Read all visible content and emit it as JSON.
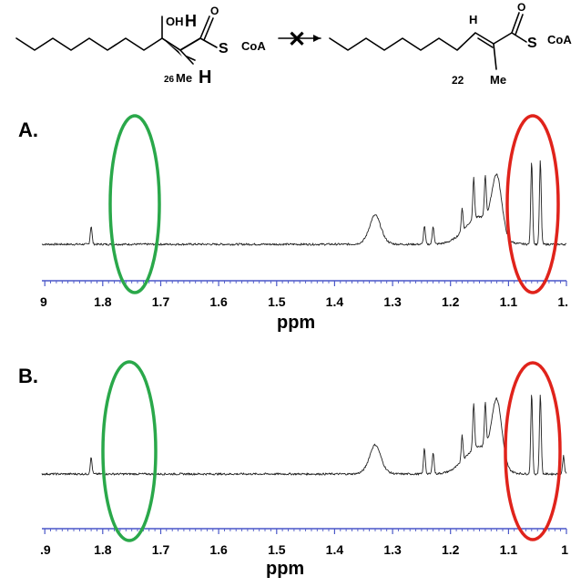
{
  "scheme": {
    "reactant": {
      "oh": "OH",
      "h_top": "H",
      "o": "O",
      "s": "S",
      "coa": "CoA",
      "me_num": "26",
      "me": "Me",
      "h_bottom": "H"
    },
    "arrow_symbol": "✕",
    "product": {
      "h": "H",
      "o": "O",
      "s": "S",
      "coa": "CoA",
      "number": "22",
      "me": "Me"
    }
  },
  "colors": {
    "green_marker": "#2aa84a",
    "red_marker": "#e0231b",
    "axis": "#4a57c8",
    "trace": "#222222"
  },
  "chart_data": [
    {
      "type": "line",
      "panel_label": "A.",
      "xlabel": "ppm",
      "tick_labels": [
        "9",
        "1.8",
        "1.7",
        "1.6",
        "1.5",
        "1.4",
        "1.3",
        "1.2",
        "1.1",
        "1."
      ],
      "xlim": [
        1.9,
        1.0
      ],
      "x_reversed": true,
      "peaks_ppm": [
        1.82,
        1.33,
        1.245,
        1.23,
        1.18,
        1.16,
        1.14,
        1.12,
        1.06,
        1.045
      ],
      "highlight_green_center_ppm": 1.735,
      "highlight_red_center_ppm": 1.055
    },
    {
      "type": "line",
      "panel_label": "B.",
      "xlabel": "ppm",
      "tick_labels": [
        ".9",
        "1.8",
        "1.7",
        "1.6",
        "1.5",
        "1.4",
        "1.3",
        "1.2",
        "1.1",
        "1"
      ],
      "xlim": [
        1.9,
        1.0
      ],
      "x_reversed": true,
      "peaks_ppm": [
        1.82,
        1.33,
        1.245,
        1.23,
        1.18,
        1.16,
        1.14,
        1.12,
        1.06,
        1.045,
        1.005
      ],
      "highlight_green_center_ppm": 1.745,
      "highlight_red_center_ppm": 1.055
    }
  ]
}
